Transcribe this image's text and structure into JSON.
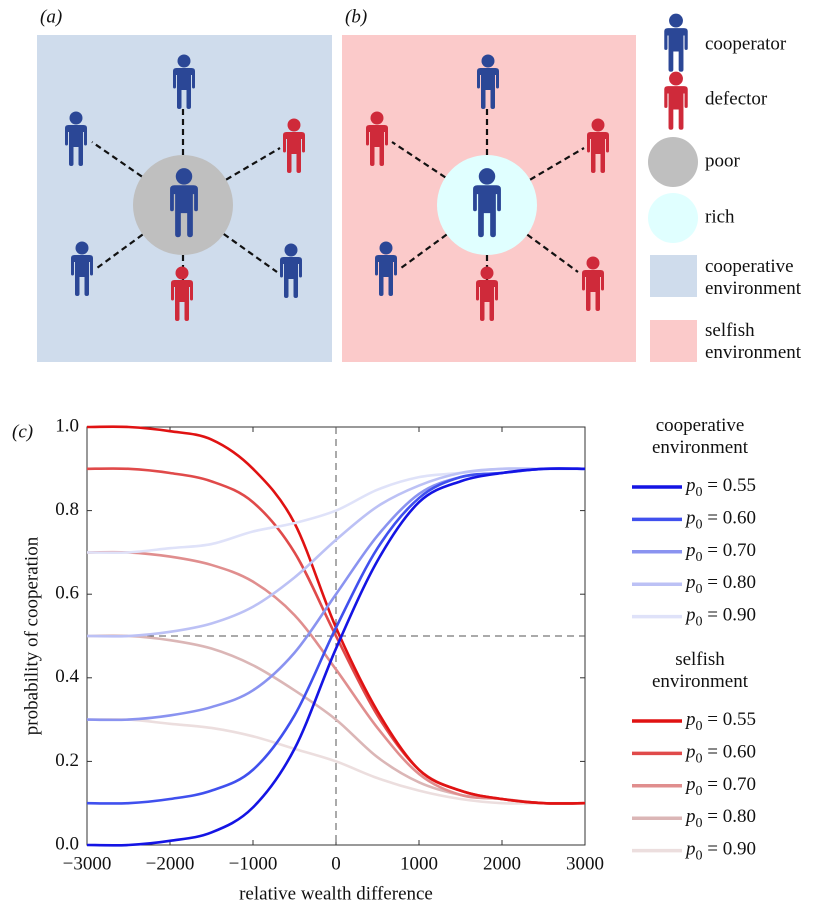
{
  "diagram": {
    "panel_a": {
      "label": "(a)"
    },
    "panel_b": {
      "label": "(b)"
    },
    "legend": {
      "cooperator": "cooperator",
      "defector": "defector",
      "poor": "poor",
      "rich": "rich",
      "cooperative": "cooperative environment",
      "selfish": "selfish environment"
    }
  },
  "chart_data": {
    "type": "line",
    "panel_label": "(c)",
    "xlabel": "relative wealth difference",
    "ylabel": "probability of cooperation",
    "x": [
      -3000,
      -2500,
      -2000,
      -1500,
      -1000,
      -500,
      0,
      500,
      1000,
      1500,
      2000,
      2500,
      3000
    ],
    "xlim": [
      -3000,
      3000
    ],
    "xticks": [
      {
        "value": -3000,
        "label": "−3000"
      },
      {
        "value": -2000,
        "label": "−2000"
      },
      {
        "value": -1000,
        "label": "−1000"
      },
      0,
      1000,
      2000,
      3000
    ],
    "ylim": [
      0,
      1
    ],
    "yticks": [
      {
        "value": 0,
        "label": "0.0"
      },
      0.2,
      0.4,
      0.6,
      0.8,
      {
        "value": 1,
        "label": "1.0"
      }
    ],
    "reference_lines": {
      "x": 0,
      "y": 0.5
    },
    "legend_titles": [
      "cooperative environment",
      "selfish environment"
    ],
    "series": [
      {
        "name": "p0 = 0.55",
        "color": "#1414e4",
        "values": [
          0.0,
          0.0,
          0.01,
          0.03,
          0.09,
          0.23,
          0.47,
          0.68,
          0.82,
          0.87,
          0.89,
          0.9,
          0.9
        ]
      },
      {
        "name": "p0 = 0.60",
        "color": "#4050ee",
        "values": [
          0.1,
          0.1,
          0.11,
          0.13,
          0.18,
          0.31,
          0.52,
          0.71,
          0.83,
          0.88,
          0.89,
          0.9,
          0.9
        ]
      },
      {
        "name": "p0 = 0.70",
        "color": "#8a93f0",
        "values": [
          0.3,
          0.3,
          0.31,
          0.33,
          0.37,
          0.46,
          0.6,
          0.74,
          0.84,
          0.88,
          0.89,
          0.9,
          0.9
        ]
      },
      {
        "name": "p0 = 0.80",
        "color": "#bcc1f5",
        "values": [
          0.5,
          0.5,
          0.51,
          0.53,
          0.57,
          0.64,
          0.73,
          0.81,
          0.86,
          0.89,
          0.9,
          0.9,
          0.9
        ]
      },
      {
        "name": "p0 = 0.90",
        "color": "#dfe2f9",
        "values": [
          0.7,
          0.7,
          0.71,
          0.72,
          0.75,
          0.77,
          0.8,
          0.85,
          0.88,
          0.89,
          0.9,
          0.9,
          0.9
        ]
      },
      {
        "name": "p0 = 0.55",
        "color": "#e01212",
        "values": [
          1.0,
          1.0,
          0.99,
          0.97,
          0.9,
          0.77,
          0.52,
          0.32,
          0.18,
          0.13,
          0.11,
          0.1,
          0.1
        ]
      },
      {
        "name": "p0 = 0.60",
        "color": "#e04a4a",
        "values": [
          0.9,
          0.9,
          0.89,
          0.87,
          0.82,
          0.7,
          0.5,
          0.31,
          0.18,
          0.13,
          0.11,
          0.1,
          0.1
        ]
      },
      {
        "name": "p0 = 0.70",
        "color": "#e08e8e",
        "values": [
          0.7,
          0.7,
          0.69,
          0.67,
          0.63,
          0.55,
          0.42,
          0.28,
          0.17,
          0.12,
          0.11,
          0.1,
          0.1
        ]
      },
      {
        "name": "p0 = 0.80",
        "color": "#dbb6b6",
        "values": [
          0.5,
          0.5,
          0.49,
          0.47,
          0.43,
          0.37,
          0.3,
          0.21,
          0.15,
          0.12,
          0.11,
          0.1,
          0.1
        ]
      },
      {
        "name": "p0 = 0.90",
        "color": "#ecdede",
        "values": [
          0.3,
          0.3,
          0.29,
          0.28,
          0.26,
          0.23,
          0.2,
          0.16,
          0.13,
          0.11,
          0.1,
          0.1,
          0.1
        ]
      }
    ]
  }
}
